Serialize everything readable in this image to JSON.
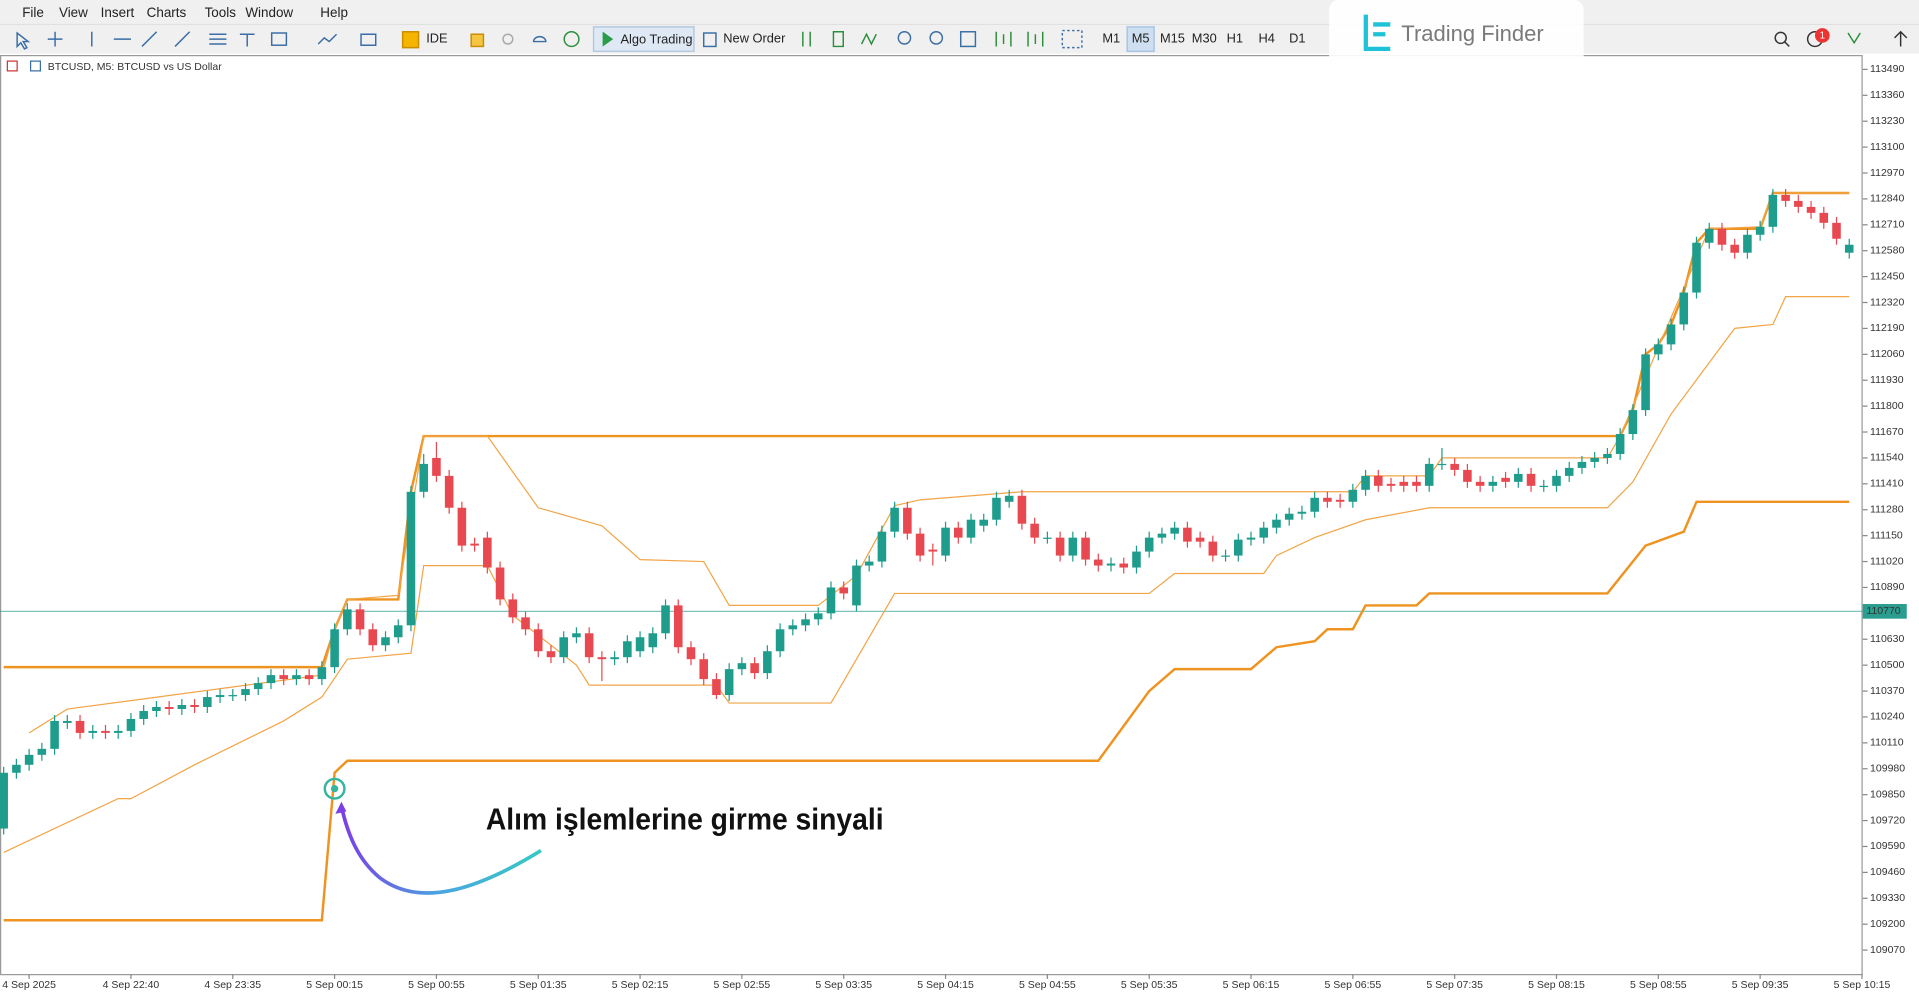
{
  "ui": {
    "menu": [
      "File",
      "View",
      "Insert",
      "Charts",
      "Tools",
      "Window",
      "Help"
    ],
    "ide": "IDE",
    "algo": "Algo Trading",
    "order": "New Order",
    "timeframes": [
      "M1",
      "M5",
      "M15",
      "M30",
      "H1",
      "H4",
      "D1"
    ],
    "logo": "Trading Finder",
    "badge": "1"
  },
  "chart_data": {
    "type": "candlestick",
    "symbol_label": "BTCUSD, M5:  BTCUSD vs US Dollar",
    "annotation": "Alım işlemlerine girme sinyali",
    "categories": [
      null,
      null,
      "4 Sep 2025",
      null,
      null,
      null,
      null,
      null,
      null,
      null,
      "4 Sep 22:40",
      null,
      null,
      null,
      null,
      null,
      null,
      null,
      "4 Sep 23:35",
      null,
      null,
      null,
      null,
      null,
      null,
      null,
      "5 Sep 00:15",
      null,
      null,
      null,
      null,
      null,
      null,
      null,
      "5 Sep 00:55",
      null,
      null,
      null,
      null,
      null,
      null,
      null,
      "5 Sep 01:35",
      null,
      null,
      null,
      null,
      null,
      null,
      null,
      "5 Sep 02:15",
      null,
      null,
      null,
      null,
      null,
      null,
      null,
      "5 Sep 02:55",
      null,
      null,
      null,
      null,
      null,
      null,
      null,
      "5 Sep 03:35",
      null,
      null,
      null,
      null,
      null,
      null,
      null,
      "5 Sep 04:15",
      null,
      null,
      null,
      null,
      null,
      null,
      null,
      "5 Sep 04:55",
      null,
      null,
      null,
      null,
      null,
      null,
      null,
      "5 Sep 05:35",
      null,
      null,
      null,
      null,
      null,
      null,
      null,
      "5 Sep 06:15",
      null,
      null,
      null,
      null,
      null,
      null,
      null,
      "5 Sep 06:55",
      null,
      null,
      null,
      null,
      null,
      null,
      null,
      "5 Sep 07:35",
      null,
      null,
      null,
      null,
      null,
      null,
      null,
      "5 Sep 08:15",
      null,
      null,
      null,
      null,
      null,
      null,
      null,
      "5 Sep 08:55",
      null,
      null,
      null,
      null,
      null,
      null,
      null,
      "5 Sep 09:35",
      null,
      null,
      null,
      null,
      null,
      null,
      null,
      "5 Sep 10:15"
    ],
    "open": [
      109680,
      109960,
      110000,
      110050,
      110080,
      110210,
      110220,
      110160,
      110170,
      110160,
      110170,
      110230,
      110270,
      110290,
      110280,
      110300,
      110290,
      110340,
      110350,
      110350,
      110380,
      110410,
      110450,
      110430,
      110450,
      110430,
      110490,
      110680,
      110780,
      110680,
      110600,
      110640,
      110700,
      111370,
      111540,
      111450,
      111290,
      111110,
      111140,
      110990,
      110830,
      110740,
      110680,
      110570,
      110540,
      110640,
      110660,
      110540,
      110530,
      110540,
      110570,
      110590,
      110660,
      110800,
      110590,
      110530,
      110430,
      110350,
      110480,
      110510,
      110460,
      110570,
      110680,
      110700,
      110730,
      110760,
      110890,
      110800,
      111000,
      111020,
      111170,
      111290,
      111160,
      111080,
      111050,
      111190,
      111140,
      111200,
      111230,
      111320,
      111350,
      111210,
      111140,
      111140,
      111050,
      111140,
      111030,
      111000,
      111010,
      110990,
      111070,
      111140,
      111160,
      111190,
      111140,
      111120,
      111050,
      111050,
      111130,
      111140,
      111190,
      111230,
      111260,
      111270,
      111340,
      111330,
      111320,
      111380,
      111450,
      111410,
      111420,
      111420,
      111400,
      111510,
      111510,
      111480,
      111420,
      111400,
      111440,
      111420,
      111460,
      111400,
      111400,
      111450,
      111490,
      111520,
      111540,
      111560,
      111660,
      111780,
      112060,
      112110,
      112210,
      112370,
      112620,
      112690,
      112610,
      112570,
      112660,
      112700,
      112860,
      112830,
      112800,
      112770,
      112720,
      112570,
      null
    ],
    "high": [
      109990,
      110030,
      110080,
      110110,
      110250,
      110250,
      110250,
      110200,
      110200,
      110200,
      110260,
      110300,
      110320,
      110320,
      110330,
      110330,
      110370,
      110380,
      110380,
      110410,
      110440,
      110480,
      110480,
      110480,
      110480,
      110520,
      110710,
      110810,
      110810,
      110710,
      110670,
      110730,
      111400,
      111560,
      111620,
      111480,
      111320,
      111140,
      111170,
      111020,
      110860,
      110770,
      110710,
      110600,
      110670,
      110690,
      110690,
      110570,
      110570,
      110650,
      110670,
      110690,
      110830,
      110830,
      110620,
      110560,
      110460,
      110510,
      110540,
      110540,
      110600,
      110710,
      110730,
      110760,
      110790,
      110920,
      110920,
      111030,
      111050,
      111200,
      111320,
      111320,
      111190,
      111110,
      111220,
      111220,
      111260,
      111260,
      111370,
      111380,
      111380,
      111240,
      111170,
      111170,
      111170,
      111170,
      111060,
      111040,
      111040,
      111100,
      111170,
      111190,
      111220,
      111220,
      111170,
      111150,
      111080,
      111160,
      111170,
      111220,
      111260,
      111290,
      111300,
      111370,
      111370,
      111360,
      111410,
      111480,
      111480,
      111440,
      111450,
      111450,
      111540,
      111590,
      111540,
      111510,
      111450,
      111450,
      111470,
      111490,
      111490,
      111430,
      111480,
      111520,
      111550,
      111570,
      111590,
      111690,
      111810,
      112090,
      112140,
      112240,
      112400,
      112650,
      112720,
      112720,
      112640,
      112690,
      112730,
      112890,
      112890,
      112860,
      112830,
      112800,
      112750,
      112640,
      null
    ],
    "low": [
      109650,
      109930,
      109970,
      110020,
      110050,
      110180,
      110130,
      110130,
      110130,
      110130,
      110140,
      110200,
      110240,
      110250,
      110250,
      110260,
      110260,
      110310,
      110320,
      110320,
      110350,
      110380,
      110400,
      110400,
      110400,
      110400,
      110460,
      110650,
      110650,
      110570,
      110570,
      110610,
      110670,
      111340,
      111420,
      111260,
      111070,
      111070,
      110960,
      110800,
      110710,
      110650,
      110540,
      110510,
      110510,
      110610,
      110510,
      110420,
      110500,
      110510,
      110540,
      110560,
      110630,
      110560,
      110500,
      110400,
      110330,
      110320,
      110450,
      110430,
      110430,
      110540,
      110650,
      110670,
      110700,
      110730,
      110830,
      110770,
      110970,
      110990,
      111140,
      111130,
      111020,
      111000,
      111020,
      111110,
      111110,
      111170,
      111200,
      111290,
      111180,
      111110,
      111110,
      111020,
      111020,
      111000,
      110970,
      110970,
      110960,
      110960,
      111040,
      111110,
      111130,
      111090,
      111090,
      111020,
      111020,
      111020,
      111100,
      111110,
      111160,
      111200,
      111230,
      111240,
      111290,
      111290,
      111290,
      111350,
      111370,
      111370,
      111370,
      111370,
      111370,
      111480,
      111450,
      111390,
      111370,
      111370,
      111390,
      111390,
      111370,
      111370,
      111370,
      111420,
      111460,
      111490,
      111510,
      111530,
      111630,
      111750,
      112030,
      112080,
      112180,
      112340,
      112590,
      112580,
      112540,
      112540,
      112630,
      112670,
      112800,
      112770,
      112740,
      112690,
      112610,
      112540,
      null
    ],
    "close": [
      109960,
      110000,
      110050,
      110080,
      110220,
      110220,
      110160,
      110170,
      110160,
      110170,
      110230,
      110270,
      110290,
      110280,
      110300,
      110290,
      110340,
      110350,
      110350,
      110380,
      110410,
      110450,
      110430,
      110450,
      110430,
      110490,
      110680,
      110780,
      110680,
      110600,
      110640,
      110700,
      111370,
      111510,
      111450,
      111290,
      111100,
      111100,
      110990,
      110830,
      110740,
      110680,
      110570,
      110540,
      110640,
      110660,
      110540,
      110530,
      110540,
      110620,
      110640,
      110660,
      110800,
      110590,
      110530,
      110430,
      110350,
      110480,
      110510,
      110460,
      110570,
      110680,
      110700,
      110730,
      110760,
      110890,
      110860,
      111000,
      111020,
      111170,
      111290,
      111160,
      111050,
      111070,
      111190,
      111140,
      111230,
      111230,
      111340,
      111350,
      111210,
      111140,
      111140,
      111050,
      111140,
      111030,
      111000,
      111010,
      110990,
      111070,
      111140,
      111160,
      111190,
      111120,
      111120,
      111050,
      111050,
      111130,
      111140,
      111190,
      111230,
      111260,
      111270,
      111340,
      111320,
      111320,
      111380,
      111450,
      111400,
      111400,
      111400,
      111400,
      111510,
      111510,
      111480,
      111420,
      111400,
      111420,
      111420,
      111460,
      111400,
      111400,
      111450,
      111490,
      111520,
      111540,
      111560,
      111660,
      111780,
      112060,
      112110,
      112210,
      112370,
      112620,
      112690,
      112610,
      112570,
      112660,
      112700,
      112860,
      112830,
      112800,
      112770,
      112720,
      112640,
      112610,
      null
    ],
    "up_color": "#1e9c8c",
    "down_color": "#e8484f",
    "lines": [
      {
        "color": "#ee9320",
        "width": 2,
        "x": [
          0,
          25,
          26,
          27,
          31,
          32,
          33,
          127,
          128,
          129,
          130,
          131,
          132,
          133,
          134,
          138,
          139,
          145
        ],
        "values": [
          110490,
          110490,
          110680,
          110830,
          110830,
          111370,
          111650,
          111650,
          111780,
          112060,
          112110,
          112210,
          112370,
          112620,
          112690,
          112690,
          112870,
          112870
        ]
      },
      {
        "color": "#ee9320",
        "width": 2,
        "x": [
          0,
          25,
          26,
          27,
          86,
          90,
          92,
          98,
          100,
          103,
          104,
          106,
          107,
          111,
          112,
          126,
          129,
          132,
          133,
          145
        ],
        "values": [
          109220,
          109220,
          109960,
          110020,
          110020,
          110370,
          110480,
          110480,
          110590,
          110620,
          110680,
          110680,
          110800,
          110800,
          110860,
          110860,
          111100,
          111170,
          111320,
          111320
        ]
      },
      {
        "color": "#f2a447",
        "width": 1,
        "x": [
          2,
          5,
          25,
          26,
          27,
          31,
          33,
          38,
          42,
          47,
          50,
          55,
          57,
          64,
          67,
          70,
          72,
          80,
          106,
          107,
          112,
          113,
          126,
          127,
          134,
          138,
          139,
          145
        ],
        "values": [
          110160,
          110280,
          110450,
          110680,
          110830,
          110850,
          111650,
          111650,
          111290,
          111200,
          111030,
          111020,
          110800,
          110800,
          110950,
          111300,
          111330,
          111370,
          111370,
          111450,
          111450,
          111540,
          111540,
          111650,
          112690,
          112700,
          112870,
          112870
        ]
      },
      {
        "color": "#f2a447",
        "width": 1,
        "x": [
          0,
          9,
          10,
          15,
          22,
          25,
          27,
          32,
          33,
          38,
          40,
          45,
          46,
          56,
          57,
          65,
          70,
          90,
          92,
          99,
          100,
          103,
          107,
          112,
          126,
          128,
          131,
          136,
          139,
          140,
          145
        ],
        "values": [
          109560,
          109830,
          109830,
          110000,
          110220,
          110340,
          110530,
          110560,
          111000,
          111000,
          110750,
          110500,
          110400,
          110400,
          110310,
          110310,
          110860,
          110860,
          110960,
          110960,
          111050,
          111140,
          111230,
          111290,
          111290,
          111420,
          111760,
          112190,
          112210,
          112350,
          112350
        ]
      }
    ],
    "ylim": [
      108950,
      113550
    ],
    "yticks": [
      113490,
      113360,
      113230,
      113100,
      112970,
      112840,
      112710,
      112580,
      112450,
      112320,
      112190,
      112060,
      111930,
      111800,
      111670,
      111540,
      111410,
      111280,
      111150,
      111020,
      110890,
      110630,
      110500,
      110370,
      110240,
      110110,
      109980,
      109850,
      109720,
      109590,
      109460,
      109330,
      109200,
      109070
    ],
    "current_price": 110770,
    "current_color": "#2a9d8f",
    "signal": {
      "x": 26,
      "value": 109880,
      "color": "#35b59f"
    }
  }
}
